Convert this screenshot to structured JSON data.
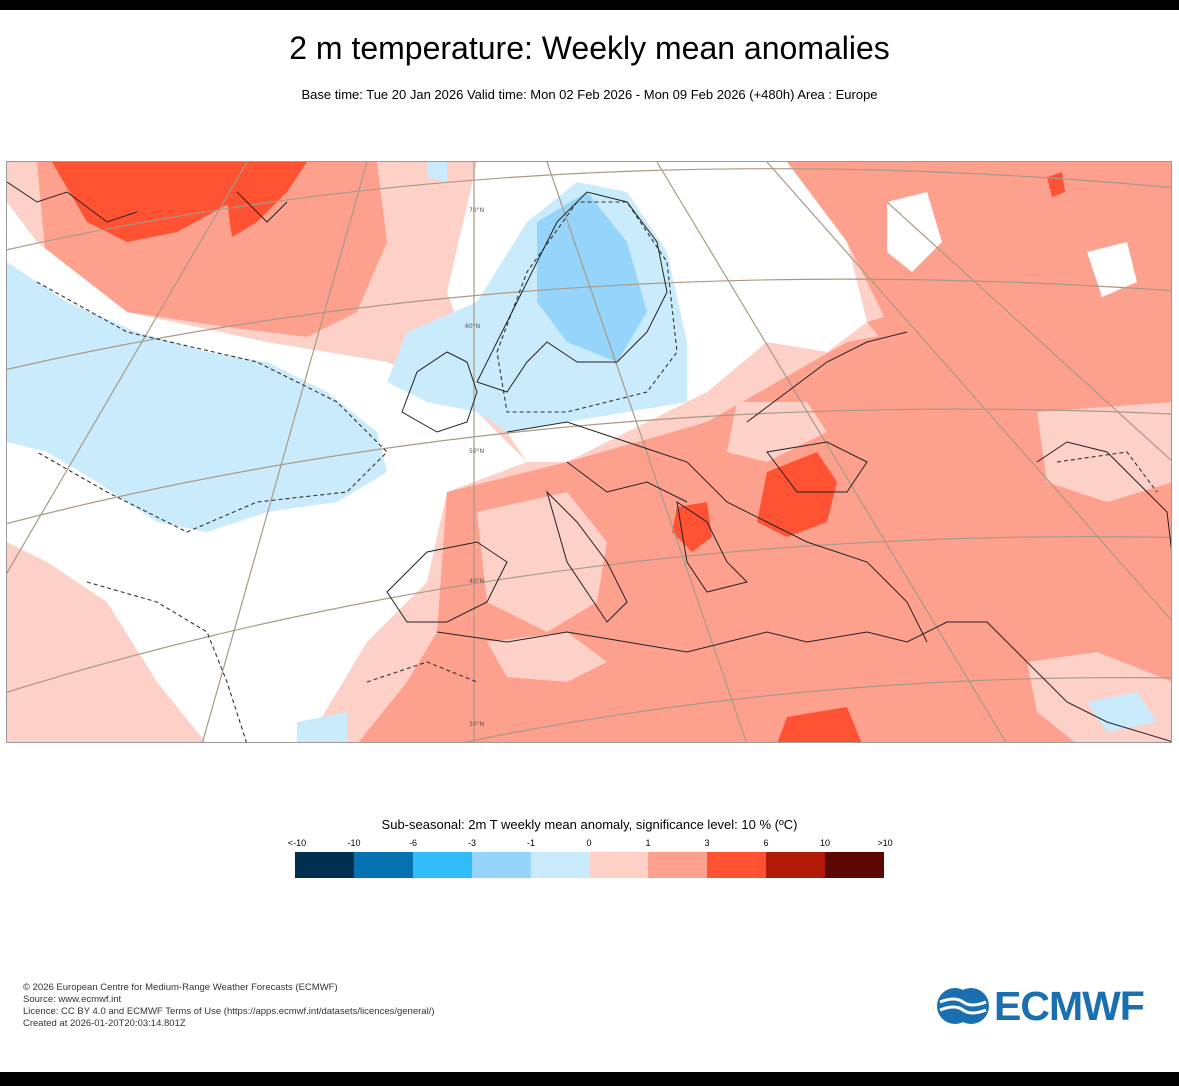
{
  "header": {
    "title": "2 m temperature: Weekly mean anomalies",
    "subtitle": "Base time: Tue 20 Jan 2026 Valid time: Mon 02 Feb 2026 - Mon 09 Feb 2026 (+480h) Area : Europe"
  },
  "map": {
    "region": "Europe",
    "lat_labels": [
      "70°N",
      "60°N",
      "50°N",
      "40°N",
      "30°N"
    ],
    "colors": {
      "strong_warm": "#ff5233",
      "warm": "#fda18e",
      "slight_warm": "#fdd0c8",
      "slight_cold": "#c9ebfc",
      "cold": "#95d5fb",
      "gridline": "#a89a86",
      "coastline": "#222222"
    }
  },
  "legend": {
    "title": "Sub-seasonal: 2m T weekly mean anomaly, significance level: 10 % (ºC)",
    "ticks": [
      "<-10",
      "-10",
      "-6",
      "-3",
      "-1",
      "0",
      "1",
      "3",
      "6",
      "10",
      ">10"
    ],
    "colors": [
      "#01304f",
      "#0571b0",
      "#30bdfa",
      "#95d5fb",
      "#c9ebfc",
      "#fdd0c8",
      "#fda18e",
      "#ff5233",
      "#b01a06",
      "#5a0801"
    ]
  },
  "footer": {
    "lines": [
      "© 2026 European Centre for Medium-Range Weather Forecasts (ECMWF)",
      "Source: www.ecmwf.int",
      "Licence: CC BY 4.0 and ECMWF Terms of Use (https://apps.ecmwf.int/datasets/licences/general/)",
      "Created at 2026-01-20T20:03:14.801Z"
    ]
  },
  "logo": {
    "text": "ECMWF",
    "color": "#1a6fb0"
  }
}
